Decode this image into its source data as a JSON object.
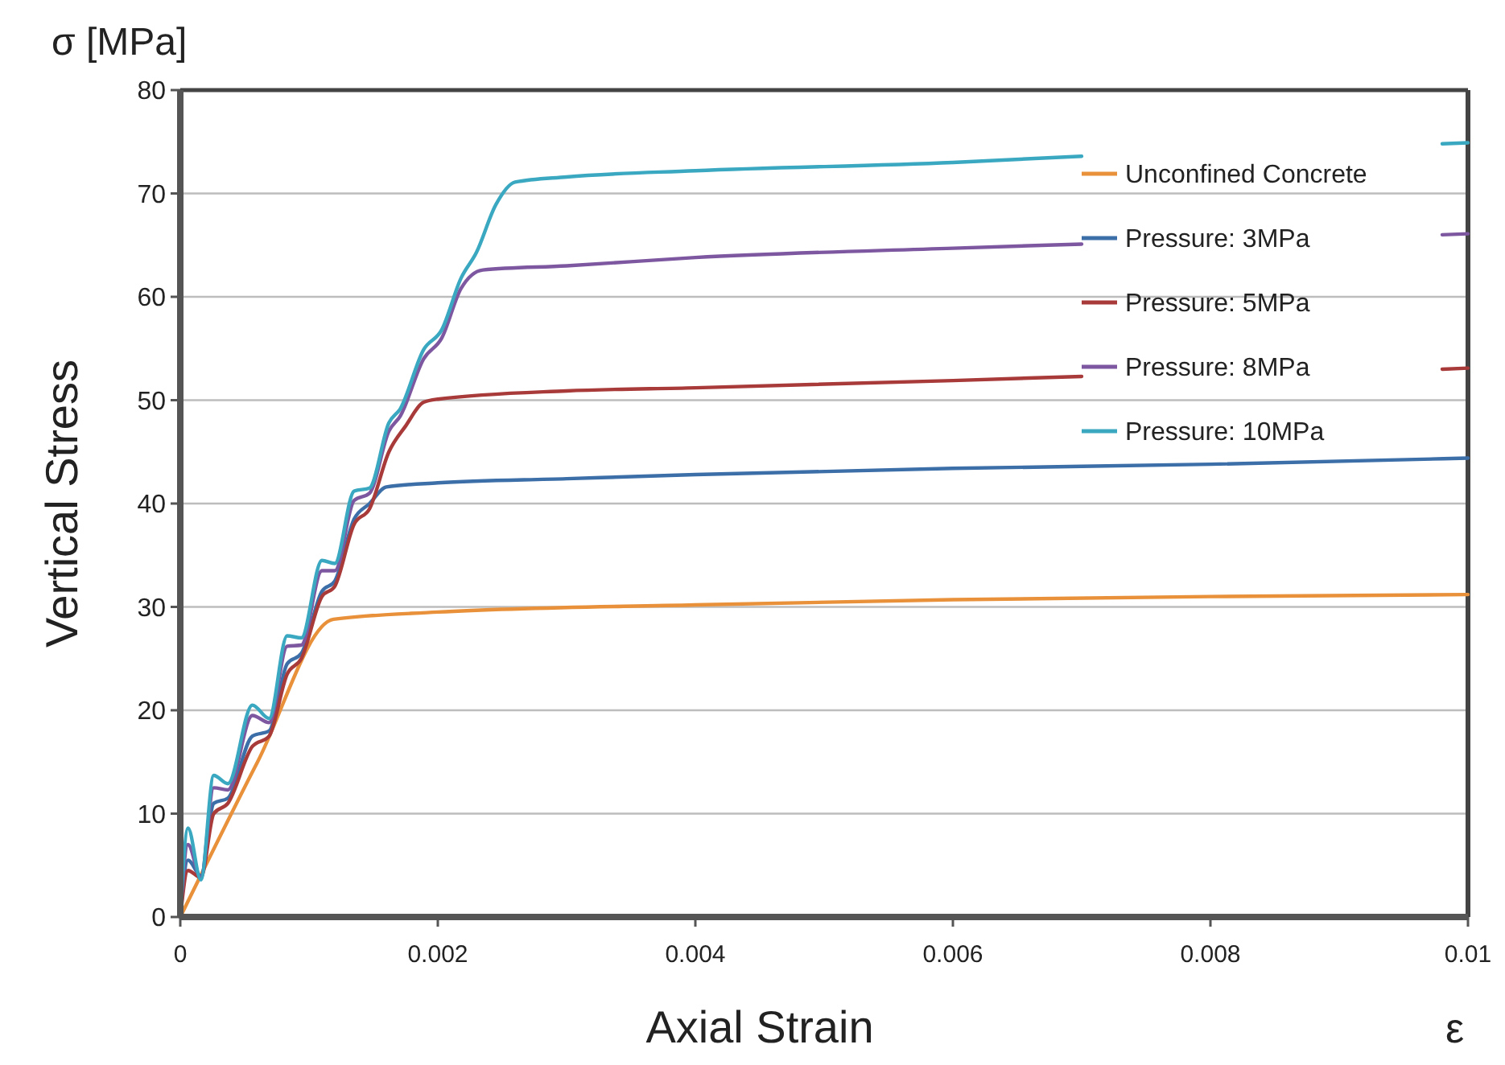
{
  "chart_data": {
    "type": "line",
    "xlabel": "Axial Strain",
    "ylabel": "Vertical Stress",
    "annotations": [
      "σ [MPa]",
      "ε"
    ],
    "xlim": [
      0,
      0.01
    ],
    "ylim": [
      0,
      80
    ],
    "xticks": [
      0,
      0.002,
      0.004,
      0.006,
      0.008,
      {
        "value": 0.01,
        "label": "0.01"
      }
    ],
    "yticks": [
      0,
      10,
      20,
      30,
      40,
      50,
      60,
      70,
      80
    ],
    "grid": "y",
    "legend": "top right",
    "marker": "none",
    "line_style": "solid",
    "series": [
      {
        "name": "Unconfined Concrete",
        "color": "#e8913a",
        "x": [
          0,
          0.0006,
          0.00119,
          0.002,
          0.004,
          0.006,
          0.008,
          0.01
        ],
        "values": [
          0,
          15,
          28.8,
          29.5,
          30.2,
          30.7,
          31.0,
          31.2
        ]
      },
      {
        "name": "Pressure: 3MPa",
        "color": "#3c6ea8",
        "x": [
          0,
          6e-05,
          0.00016,
          0.00026,
          0.00037,
          0.00056,
          0.00069,
          0.00083,
          0.00094,
          0.0011,
          0.0012,
          0.00135,
          0.00147,
          0.0016,
          0.002,
          0.003,
          0.004,
          0.006,
          0.008,
          0.01
        ],
        "values": [
          0,
          5.5,
          4.0,
          11.0,
          11.5,
          17.5,
          18.0,
          24.5,
          25.5,
          31.5,
          32.5,
          38.5,
          40.0,
          41.6,
          42.0,
          42.4,
          42.8,
          43.4,
          43.8,
          44.4
        ]
      },
      {
        "name": "Pressure: 5MPa",
        "color": "#a83a3a",
        "x": [
          0,
          6e-05,
          0.00016,
          0.00026,
          0.00037,
          0.00056,
          0.00069,
          0.00083,
          0.00094,
          0.0011,
          0.0012,
          0.00135,
          0.00147,
          0.00162,
          0.00175,
          0.00189,
          0.002,
          0.003,
          0.004,
          0.006,
          0.007,
          0.0085,
          0.0098,
          0.01
        ],
        "values": [
          0,
          4.5,
          3.8,
          10.0,
          11.0,
          16.5,
          17.5,
          23.5,
          25.0,
          31,
          32.0,
          38,
          39.5,
          45,
          47.5,
          49.8,
          50.1,
          50.9,
          51.2,
          51.9,
          52.3,
          null,
          53.0,
          53.1
        ]
      },
      {
        "name": "Pressure: 8MPa",
        "color": "#7d58a0",
        "x": [
          0,
          6e-05,
          0.00016,
          0.00026,
          0.00037,
          0.00056,
          0.00069,
          0.00083,
          0.00094,
          0.0011,
          0.0012,
          0.00135,
          0.00147,
          0.00162,
          0.00171,
          0.00189,
          0.00203,
          0.00218,
          0.00235,
          0.003,
          0.004,
          0.006,
          0.007,
          0.0085,
          0.0098,
          0.01
        ],
        "values": [
          0,
          7,
          3.8,
          12.5,
          12.3,
          19.5,
          18.8,
          26.2,
          26.3,
          33.5,
          33.5,
          40.3,
          41,
          47,
          48.5,
          54,
          56,
          60.8,
          62.6,
          63.0,
          63.8,
          64.7,
          65.1,
          null,
          66.0,
          66.1
        ]
      },
      {
        "name": "Pressure: 10MPa",
        "color": "#3aa8c0",
        "x": [
          0,
          6e-05,
          0.00016,
          0.00026,
          0.00037,
          0.00056,
          0.00069,
          0.00083,
          0.00094,
          0.0011,
          0.0012,
          0.00135,
          0.00147,
          0.00162,
          0.00171,
          0.00189,
          0.00203,
          0.00218,
          0.0023,
          0.00245,
          0.0026,
          0.003,
          0.004,
          0.006,
          0.007,
          0.0085,
          0.0098,
          0.01
        ],
        "values": [
          0,
          8.6,
          3.6,
          13.7,
          12.9,
          20.5,
          19.2,
          27.2,
          27.0,
          34.5,
          34.2,
          41.2,
          41.5,
          47.8,
          49.2,
          54.9,
          56.8,
          61.8,
          64.3,
          68.9,
          71.1,
          71.6,
          72.2,
          73.0,
          73.6,
          null,
          74.8,
          74.9
        ]
      }
    ]
  }
}
